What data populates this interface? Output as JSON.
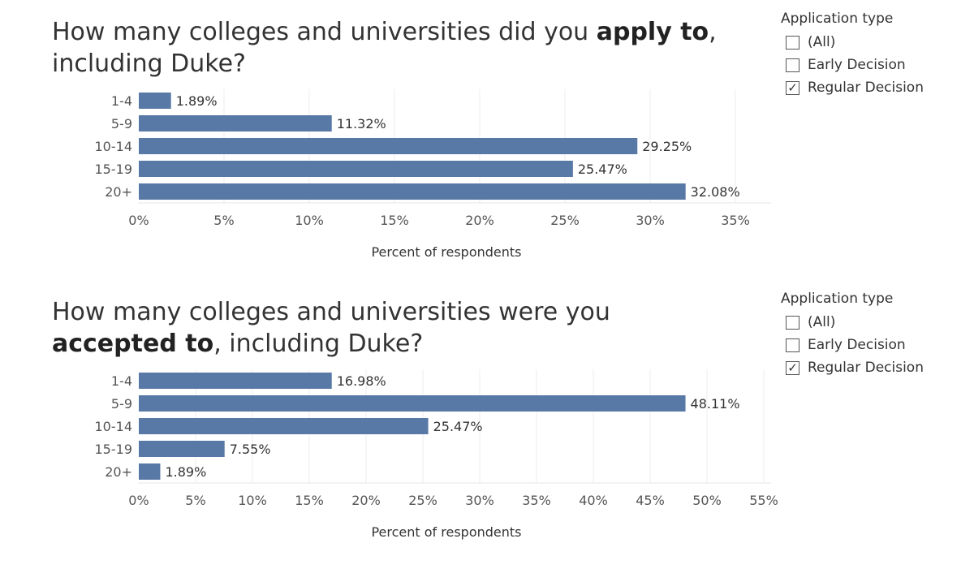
{
  "filters": [
    {
      "title": "Application type",
      "options": [
        {
          "label": "(All)",
          "checked": false
        },
        {
          "label": "Early Decision",
          "checked": false
        },
        {
          "label": "Regular Decision",
          "checked": true
        }
      ]
    },
    {
      "title": "Application type",
      "options": [
        {
          "label": "(All)",
          "checked": false
        },
        {
          "label": "Early Decision",
          "checked": false
        },
        {
          "label": "Regular Decision",
          "checked": true
        }
      ]
    }
  ],
  "titles": [
    {
      "pre": "How many colleges and universities did you ",
      "bold": "apply to",
      "post": ", including Duke?"
    },
    {
      "pre": "How many colleges and universities were you ",
      "bold": "accepted to",
      "post": ", including Duke?"
    }
  ],
  "chart_data": [
    {
      "type": "bar",
      "orientation": "horizontal",
      "title": "How many colleges and universities did you apply to, including Duke?",
      "categories": [
        "1-4",
        "5-9",
        "10-14",
        "15-19",
        "20+"
      ],
      "values": [
        1.89,
        11.32,
        29.25,
        25.47,
        32.08
      ],
      "value_labels": [
        "1.89%",
        "11.32%",
        "29.25%",
        "25.47%",
        "32.08%"
      ],
      "xlabel": "Percent of respondents",
      "xlim": [
        0,
        35
      ],
      "xticks": [
        0,
        5,
        10,
        15,
        20,
        25,
        30,
        35
      ],
      "xtick_labels": [
        "0%",
        "5%",
        "10%",
        "15%",
        "20%",
        "25%",
        "30%",
        "35%"
      ],
      "bar_color": "#5878a6",
      "grid": true
    },
    {
      "type": "bar",
      "orientation": "horizontal",
      "title": "How many colleges and universities were you accepted to, including Duke?",
      "categories": [
        "1-4",
        "5-9",
        "10-14",
        "15-19",
        "20+"
      ],
      "values": [
        16.98,
        48.11,
        25.47,
        7.55,
        1.89
      ],
      "value_labels": [
        "16.98%",
        "48.11%",
        "25.47%",
        "7.55%",
        "1.89%"
      ],
      "xlabel": "Percent of respondents",
      "xlim": [
        0,
        55
      ],
      "xticks": [
        0,
        5,
        10,
        15,
        20,
        25,
        30,
        35,
        40,
        45,
        50,
        55
      ],
      "xtick_labels": [
        "0%",
        "5%",
        "10%",
        "15%",
        "20%",
        "25%",
        "30%",
        "35%",
        "40%",
        "45%",
        "50%",
        "55%"
      ],
      "bar_color": "#5878a6",
      "grid": true
    }
  ]
}
